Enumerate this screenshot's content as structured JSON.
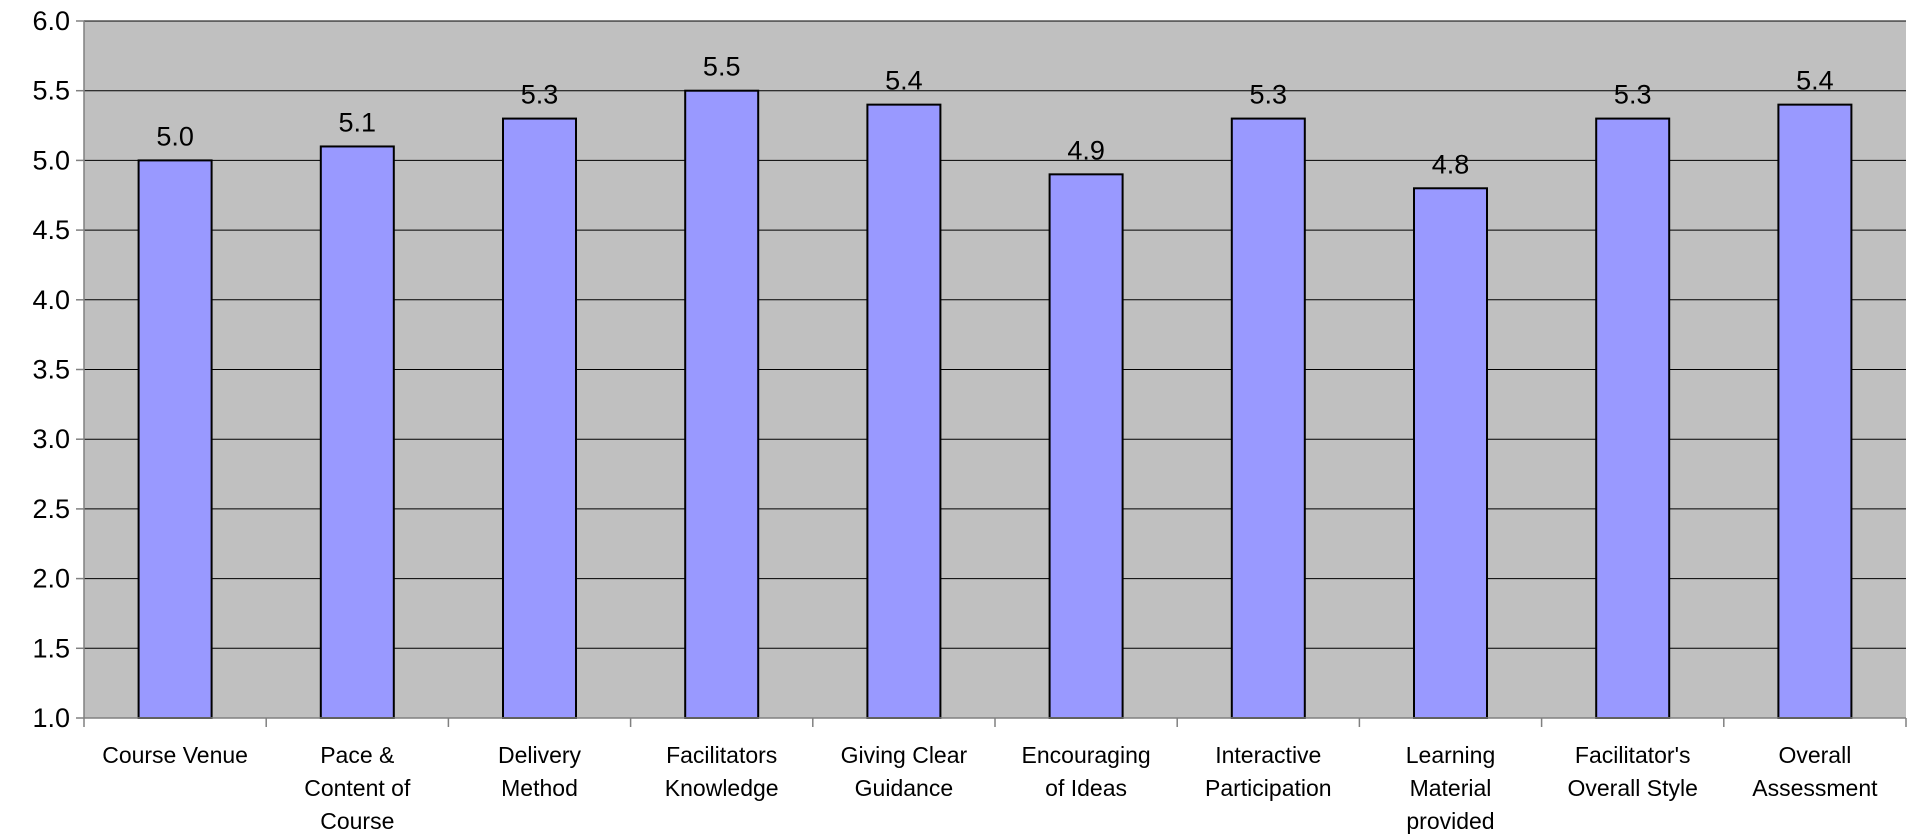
{
  "chart_data": {
    "type": "bar",
    "categories": [
      [
        "Course Venue"
      ],
      [
        "Pace &",
        "Content of",
        "Course"
      ],
      [
        "Delivery",
        "Method"
      ],
      [
        "Facilitators",
        "Knowledge"
      ],
      [
        "Giving Clear",
        "Guidance"
      ],
      [
        "Encouraging",
        "of Ideas"
      ],
      [
        "Interactive",
        "Participation"
      ],
      [
        "Learning",
        "Material",
        "provided"
      ],
      [
        "Facilitator's",
        "Overall Style"
      ],
      [
        "Overall",
        "Assessment"
      ]
    ],
    "values": [
      5.0,
      5.1,
      5.3,
      5.5,
      5.4,
      4.9,
      5.3,
      4.8,
      5.3,
      5.4
    ],
    "data_labels": [
      "5.0",
      "5.1",
      "5.3",
      "5.5",
      "5.4",
      "4.9",
      "5.3",
      "4.8",
      "5.3",
      "5.4"
    ],
    "y_ticks": [
      "1.0",
      "1.5",
      "2.0",
      "2.5",
      "3.0",
      "3.5",
      "4.0",
      "4.5",
      "5.0",
      "5.5",
      "6.0"
    ],
    "ylim": [
      1.0,
      6.0
    ],
    "title": "",
    "xlabel": "",
    "ylabel": "",
    "grid": true,
    "legend": "none",
    "colors": {
      "plot_background": "#c0c0c0",
      "bar_fill": "#9999ff",
      "bar_stroke": "#000000",
      "gridline": "#000000",
      "axis": "#808080"
    }
  }
}
